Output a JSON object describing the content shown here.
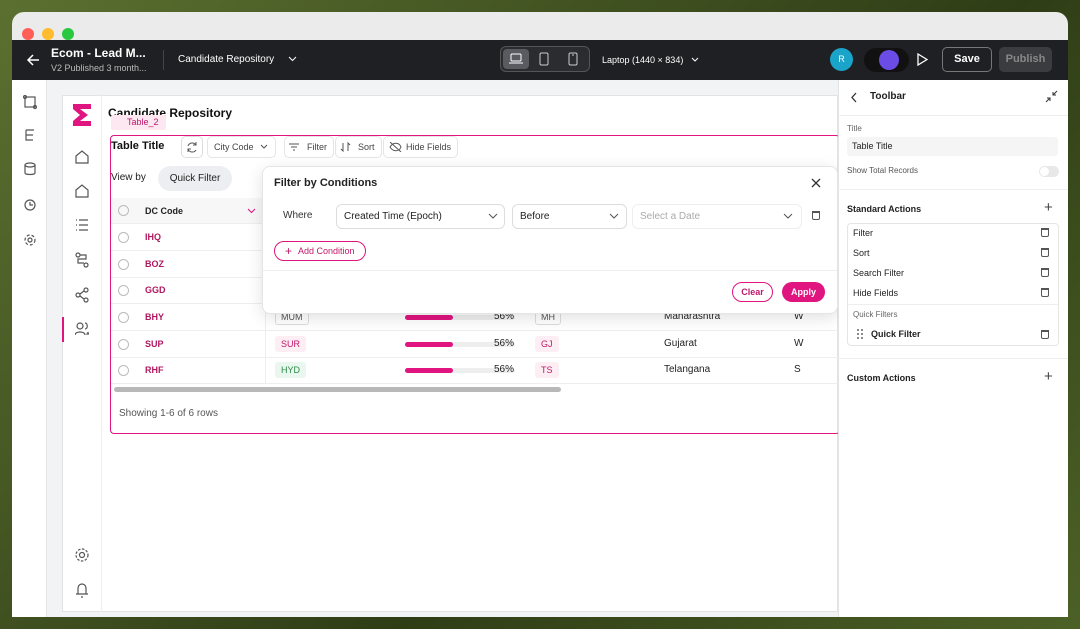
{
  "header": {
    "app_name": "Ecom - Lead M...",
    "version": "V2 Published 3 month...",
    "page": "Candidate Repository",
    "device": "Laptop (1440 × 834)",
    "avatar": "R",
    "save": "Save",
    "publish": "Publish"
  },
  "page": {
    "title": "Candidate Repository",
    "widget_tag": "Table_2"
  },
  "table": {
    "title": "Table Title",
    "toolbar": [
      "City Code",
      "Filter",
      "Sort",
      "Hide Fields"
    ],
    "view_by": "View by",
    "quick_filter": "Quick Filter",
    "columns": [
      "DC Code"
    ],
    "rows": [
      [
        "IHQ"
      ],
      [
        "BOZ"
      ],
      [
        "GGD"
      ],
      [
        "BHY",
        "MUM",
        "56%",
        "MH",
        "Maharashtra",
        "W"
      ],
      [
        "SUP",
        "SUR",
        "56%",
        "GJ",
        "Gujarat",
        "W"
      ],
      [
        "RHF",
        "HYD",
        "56%",
        "TS",
        "Telangana",
        "S"
      ]
    ],
    "footer": "Showing 1-6 of 6 rows"
  },
  "filter_dialog": {
    "title": "Filter by Conditions",
    "conditions": [
      {
        "label": "Where",
        "field": "Created Time (Epoch)",
        "operator": "Before",
        "value_placeholder": "Select a Date"
      }
    ],
    "add_condition": "Add Condition",
    "clear": "Clear",
    "apply": "Apply"
  },
  "side_panel": {
    "title": "Toolbar",
    "title_label": "Title",
    "title_value": "Table Title",
    "show_total_records": "Show Total Records",
    "standard_actions": "Standard Actions",
    "actions": [
      "Filter",
      "Sort",
      "Search Filter",
      "Hide Fields"
    ],
    "quick_filters_label": "Quick Filters",
    "quick_filters": [
      "Quick Filter"
    ],
    "custom_actions": "Custom Actions"
  }
}
